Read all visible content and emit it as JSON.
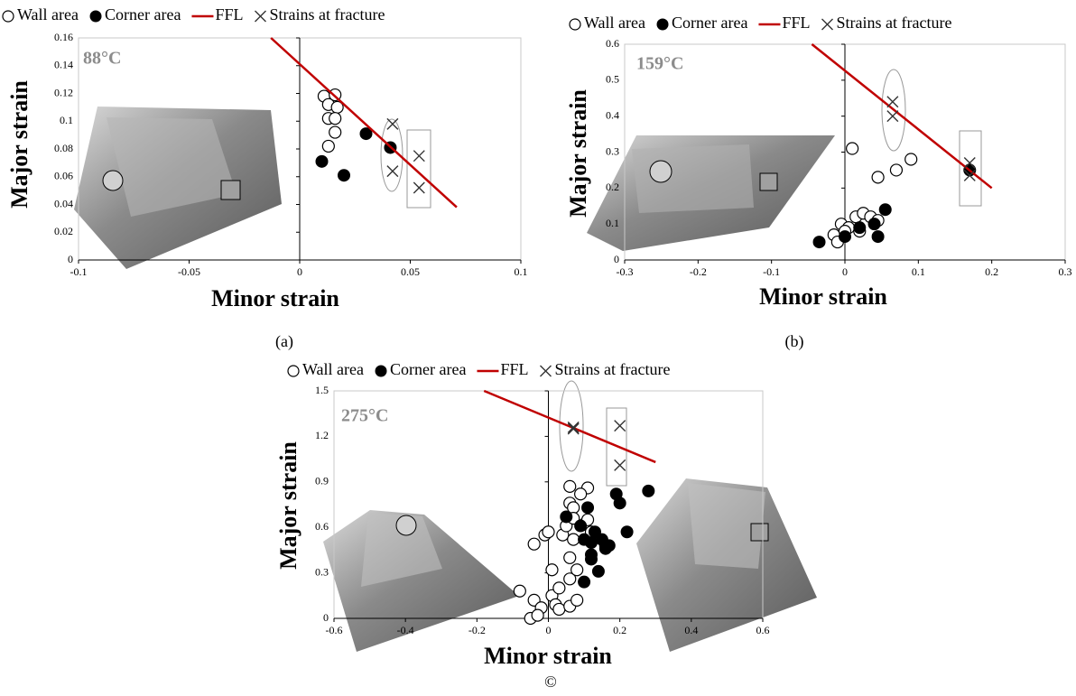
{
  "chart_data": [
    {
      "type": "scatter",
      "annotation": "88°C",
      "caption": "(a)",
      "x_label": "Minor strain",
      "y_label": "Major strain",
      "xlim": [
        -0.1,
        0.1
      ],
      "xticks": [
        -0.1,
        -0.05,
        0,
        0.05,
        0.1
      ],
      "ylim": [
        0,
        0.16
      ],
      "yticks": [
        0,
        0.02,
        0.04,
        0.06,
        0.08,
        0.1,
        0.12,
        0.14,
        0.16
      ],
      "series": [
        {
          "name": "Wall area",
          "marker": "open-circle",
          "color": "#000000",
          "x": [
            0.011,
            0.016,
            0.013,
            0.017,
            0.013,
            0.016,
            0.016,
            0.013
          ],
          "values": [
            0.118,
            0.119,
            0.112,
            0.11,
            0.102,
            0.102,
            0.092,
            0.082
          ]
        },
        {
          "name": "Corner area",
          "marker": "filled-circle",
          "color": "#000000",
          "x": [
            0.01,
            0.02,
            0.03,
            0.041
          ],
          "values": [
            0.071,
            0.061,
            0.091,
            0.081
          ]
        },
        {
          "name": "FFL",
          "marker": "line",
          "color": "#c00000",
          "x": [
            -0.013,
            0.071
          ],
          "values": [
            0.16,
            0.038
          ]
        },
        {
          "name": "Strains at fracture",
          "marker": "cross",
          "color": "#333333",
          "x": [
            0.042,
            0.042,
            0.054,
            0.054
          ],
          "values": [
            0.098,
            0.064,
            0.075,
            0.052
          ]
        }
      ]
    },
    {
      "type": "scatter",
      "annotation": "159°C",
      "caption": "(b)",
      "x_label": "Minor strain",
      "y_label": "Major strain",
      "xlim": [
        -0.3,
        0.3
      ],
      "xticks": [
        -0.3,
        -0.2,
        -0.1,
        0,
        0.1,
        0.2,
        0.3
      ],
      "ylim": [
        0,
        0.6
      ],
      "yticks": [
        0,
        0.1,
        0.2,
        0.3,
        0.4,
        0.5,
        0.6
      ],
      "series": [
        {
          "name": "Wall area",
          "marker": "open-circle",
          "color": "#000000",
          "x": [
            0.01,
            0.045,
            0.07,
            0.09,
            -0.015,
            -0.01,
            -0.005,
            0.005,
            0.015,
            0.025,
            0.02,
            0.035,
            0.045,
            0.0
          ],
          "values": [
            0.31,
            0.23,
            0.25,
            0.28,
            0.07,
            0.05,
            0.1,
            0.09,
            0.12,
            0.13,
            0.08,
            0.12,
            0.11,
            0.08
          ]
        },
        {
          "name": "Corner area",
          "marker": "filled-circle",
          "color": "#000000",
          "x": [
            -0.035,
            0.0,
            0.02,
            0.04,
            0.045,
            0.055,
            0.17
          ],
          "values": [
            0.05,
            0.065,
            0.09,
            0.1,
            0.065,
            0.14,
            0.25
          ]
        },
        {
          "name": "FFL",
          "marker": "line",
          "color": "#c00000",
          "x": [
            -0.045,
            0.2
          ],
          "values": [
            0.6,
            0.2
          ]
        },
        {
          "name": "Strains at fracture",
          "marker": "cross",
          "color": "#333333",
          "x": [
            0.065,
            0.065,
            0.17,
            0.17
          ],
          "values": [
            0.44,
            0.4,
            0.27,
            0.235
          ]
        }
      ]
    },
    {
      "type": "scatter",
      "annotation": "275°C",
      "caption": "©",
      "x_label": "Minor strain",
      "y_label": "Major strain",
      "xlim": [
        -0.6,
        0.6
      ],
      "xticks": [
        -0.6,
        -0.4,
        -0.2,
        0,
        0.2,
        0.4,
        0.6
      ],
      "ylim": [
        0,
        1.5
      ],
      "yticks": [
        0,
        0.3,
        0.6,
        0.9,
        1.2,
        1.5
      ],
      "series": [
        {
          "name": "Wall area",
          "marker": "open-circle",
          "color": "#000000",
          "x": [
            -0.08,
            -0.05,
            -0.04,
            -0.04,
            -0.02,
            -0.03,
            -0.01,
            0.0,
            0.01,
            0.01,
            0.02,
            0.03,
            0.04,
            0.05,
            0.06,
            0.06,
            0.06,
            0.07,
            0.07,
            0.07,
            0.06,
            0.06,
            0.08,
            0.1,
            0.11,
            0.11,
            0.12,
            0.08,
            0.03,
            0.16,
            0.09
          ],
          "values": [
            0.18,
            0.0,
            0.49,
            0.12,
            0.07,
            0.02,
            0.55,
            0.57,
            0.32,
            0.15,
            0.09,
            0.06,
            0.55,
            0.61,
            0.08,
            0.87,
            0.76,
            0.73,
            0.66,
            0.52,
            0.4,
            0.26,
            0.32,
            0.62,
            0.86,
            0.65,
            0.57,
            0.12,
            0.2,
            0.48,
            0.82
          ]
        },
        {
          "name": "Corner area",
          "marker": "filled-circle",
          "color": "#000000",
          "x": [
            0.05,
            0.09,
            0.11,
            0.1,
            0.12,
            0.12,
            0.13,
            0.15,
            0.16,
            0.17,
            0.14,
            0.1,
            0.19,
            0.2,
            0.22,
            0.28,
            0.12
          ],
          "values": [
            0.67,
            0.61,
            0.73,
            0.52,
            0.42,
            0.5,
            0.57,
            0.52,
            0.46,
            0.48,
            0.31,
            0.24,
            0.82,
            0.76,
            0.57,
            0.84,
            0.39
          ]
        },
        {
          "name": "FFL",
          "marker": "line",
          "color": "#c00000",
          "x": [
            -0.18,
            0.3
          ],
          "values": [
            1.5,
            1.03
          ]
        },
        {
          "name": "Strains at fracture",
          "marker": "cross",
          "color": "#333333",
          "x": [
            0.07,
            0.07,
            0.2,
            0.2
          ],
          "values": [
            1.26,
            1.25,
            1.27,
            1.01
          ]
        }
      ]
    }
  ]
}
